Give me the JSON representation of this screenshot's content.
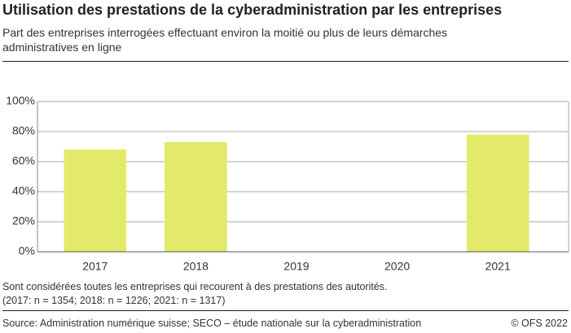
{
  "chart_data": {
    "type": "bar",
    "title": "Utilisation des prestations de la cyberadministration par les entreprises",
    "subtitle": "Part des entreprises interrogées effectuant environ la moitié ou plus de leurs démarches administratives en ligne",
    "categories": [
      "2017",
      "2018",
      "2019",
      "2020",
      "2021"
    ],
    "values": [
      68,
      73,
      null,
      null,
      78
    ],
    "color": "#e3ea6a",
    "ylim": [
      0,
      100
    ],
    "yticks": [
      {
        "value": 0,
        "label": "0%"
      },
      {
        "value": 20,
        "label": "20%"
      },
      {
        "value": 40,
        "label": "40%"
      },
      {
        "value": 60,
        "label": "60%"
      },
      {
        "value": 80,
        "label": "80%"
      },
      {
        "value": 100,
        "label": "100%"
      }
    ],
    "grid": true,
    "notes": [
      "Sont considérées toutes les entreprises qui recourent à des prestations des autorités.",
      "(2017: n = 1354; 2018: n = 1226; 2021: n = 1317)"
    ],
    "source": "Source: Administration numérique suisse; SECO – étude nationale sur la cyberadministration",
    "copyright": "© OFS 2022"
  }
}
